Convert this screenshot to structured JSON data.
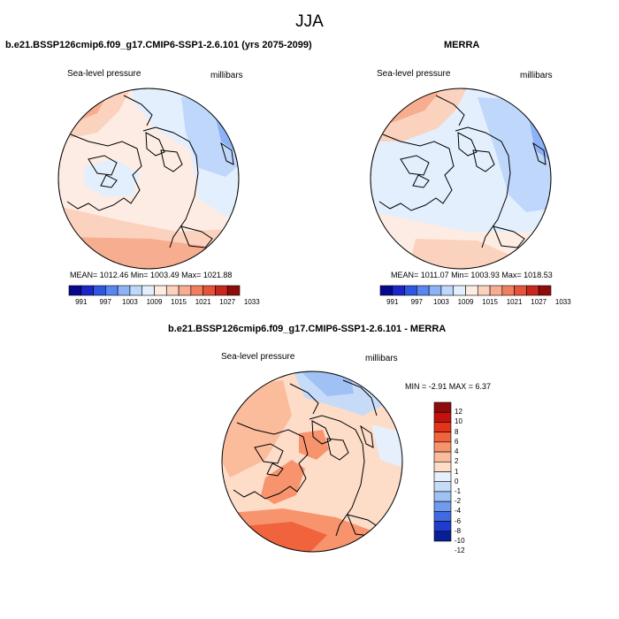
{
  "chart_data": {
    "type": "heatmap",
    "title": "JJA",
    "panels": [
      {
        "id": "model",
        "case_title": "b.e21.BSSP126cmip6.f09_g17.CMIP6-SSP1-2.6.101 (yrs 2075-2099)",
        "variable_label": "Sea-level pressure",
        "units_label": "millibars",
        "stats_text": "MEAN= 1012.46   Min= 1003.49   Max= 1021.88",
        "colorbar_labels": [
          "991",
          "997",
          "1003",
          "1009",
          "1015",
          "1021",
          "1027",
          "1033"
        ]
      },
      {
        "id": "merra",
        "case_title": "MERRA",
        "variable_label": "Sea-level pressure",
        "units_label": "millibars",
        "stats_text": "MEAN= 1011.07   Min= 1003.93   Max= 1018.53",
        "colorbar_labels": [
          "991",
          "997",
          "1003",
          "1009",
          "1015",
          "1021",
          "1027",
          "1033"
        ]
      },
      {
        "id": "difference",
        "case_title": "b.e21.BSSP126cmip6.f09_g17.CMIP6-SSP1-2.6.101 - MERRA",
        "variable_label": "Sea-level pressure",
        "units_label": "millibars",
        "stats_text": "MIN =  -2.91 MAX =   6.37",
        "colorbar_labels": [
          "12",
          "10",
          "8",
          "6",
          "4",
          "2",
          "1",
          "0",
          "-1",
          "-2",
          "-4",
          "-6",
          "-8",
          "-10",
          "-12"
        ]
      }
    ],
    "colors": {
      "abs_scale": [
        "#08088c",
        "#1a26c8",
        "#2e56e0",
        "#5a86f0",
        "#8cb2f7",
        "#bed7fb",
        "#e3effd",
        "#fdece3",
        "#fbd2bd",
        "#f7ad8f",
        "#ef7f5e",
        "#e5533a",
        "#c8271d",
        "#8e0c0c"
      ],
      "diff_scale": [
        "#8e0c0c",
        "#c1120d",
        "#e33419",
        "#f0633d",
        "#f7946e",
        "#fbbc9c",
        "#fddcc8",
        "#e6f0fc",
        "#c5dbf8",
        "#9fc1f3",
        "#6f9aee",
        "#3f6be2",
        "#1f3ccc",
        "#071f94"
      ],
      "coast": "#000000"
    }
  }
}
